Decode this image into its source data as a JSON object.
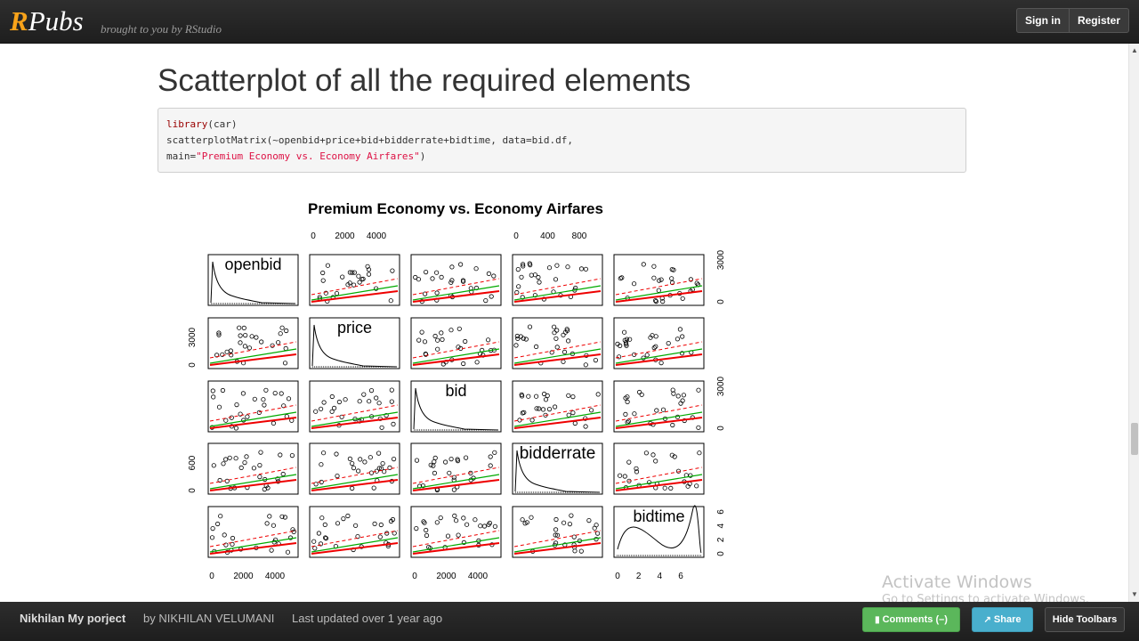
{
  "header": {
    "logo_r": "R",
    "logo_rest": "Pubs",
    "tagline": "brought to you by RStudio",
    "sign_in": "Sign in",
    "register": "Register"
  },
  "section": {
    "heading": "Scatterplot of all the required elements",
    "code": {
      "line1_fn": "library",
      "line1_rest": "(car)",
      "line2": "scatterplotMatrix(~openbid+price+bid+bidderrate+bidtime, data=bid.df,",
      "line3_pre": "main=",
      "line3_str": "\"Premium Economy vs. Economy Airfares\"",
      "line3_post": ")"
    }
  },
  "chart_data": {
    "type": "scatter",
    "title": "Premium Economy vs. Economy Airfares",
    "variables": [
      "openbid",
      "price",
      "bid",
      "bidderrate",
      "bidtime"
    ],
    "axis_ticks": {
      "openbid": [
        "0",
        "2000",
        "4000"
      ],
      "price": [
        "0",
        "3000"
      ],
      "bid": [
        "0",
        "2000",
        "4000"
      ],
      "bidderrate": [
        "0",
        "400",
        "800"
      ],
      "bidtime": [
        "0",
        "2",
        "4",
        "6"
      ]
    },
    "top_axis": [
      {
        "column": "price",
        "ticks": [
          "0",
          "2000",
          "4000"
        ]
      },
      {
        "column": "bidderrate",
        "ticks": [
          "0",
          "400",
          "800"
        ]
      }
    ],
    "bottom_axis": [
      {
        "column": "openbid",
        "ticks": [
          "0",
          "2000",
          "4000"
        ]
      },
      {
        "column": "bid",
        "ticks": [
          "0",
          "2000",
          "4000"
        ]
      },
      {
        "column": "bidtime",
        "ticks": [
          "0",
          "2",
          "4",
          "6"
        ]
      }
    ],
    "left_axis": [
      {
        "row": "price",
        "ticks": [
          "0",
          "3000"
        ]
      },
      {
        "row": "bidderrate",
        "ticks": [
          "0",
          "600"
        ]
      }
    ],
    "right_axis": [
      {
        "row": "openbid",
        "ticks": [
          "0",
          "3000"
        ]
      },
      {
        "row": "bid",
        "ticks": [
          "0",
          "3000"
        ]
      },
      {
        "row": "bidtime",
        "ticks": [
          "0",
          "2",
          "4",
          "6"
        ]
      }
    ],
    "colors": {
      "points": "#000000",
      "linear_fit": "#00aa00",
      "smooth_fit": "#ee0000"
    },
    "grid": false
  },
  "footer": {
    "title": "Nikhilan My porject",
    "author": "by NIKHILAN VELUMANI",
    "updated": "Last updated over 1 year ago",
    "comments": "Comments (–)",
    "share": "Share",
    "hide": "Hide Toolbars"
  },
  "watermark": {
    "title": "Activate Windows",
    "subtitle": "Go to Settings to activate Windows."
  },
  "icons": {
    "comments": "comment-icon",
    "share": "share-icon"
  }
}
